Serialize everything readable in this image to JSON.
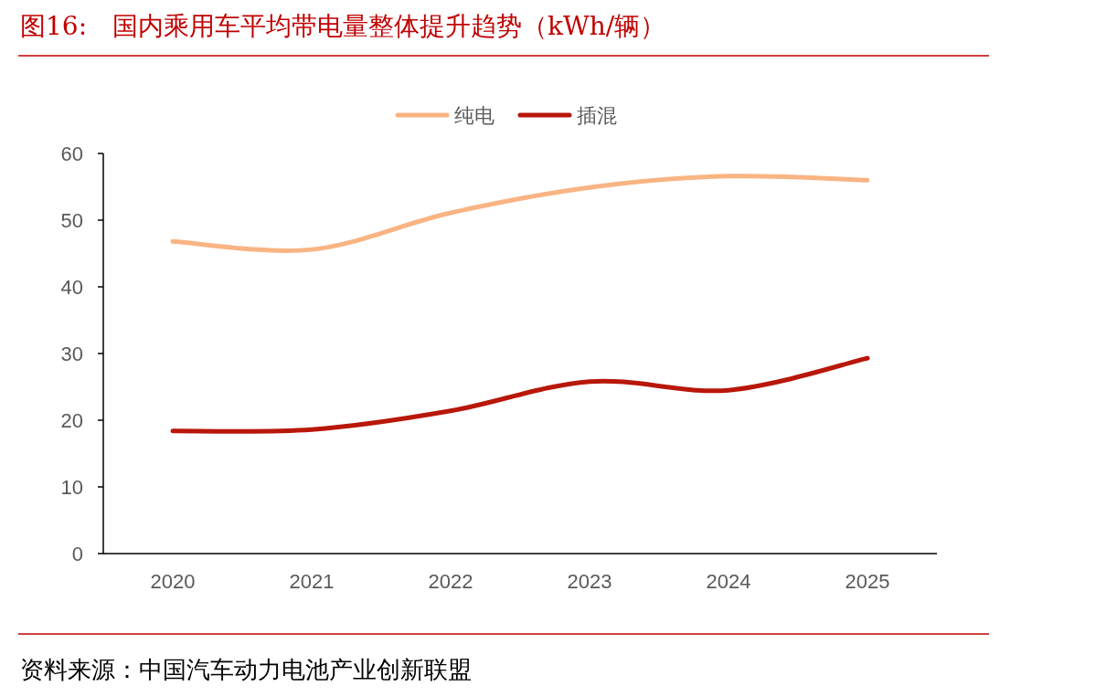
{
  "chart_data": {
    "type": "line",
    "title": "图16:　国内乘用车平均带电量整体提升趋势（kWh/辆）",
    "categories": [
      "2020",
      "2021",
      "2022",
      "2023",
      "2024",
      "2025"
    ],
    "series": [
      {
        "name": "纯电",
        "color": "#f9b483",
        "values": [
          46.8,
          45.6,
          51.1,
          54.9,
          56.6,
          56.0
        ]
      },
      {
        "name": "插混",
        "color": "#b8170a",
        "values": [
          18.4,
          18.6,
          21.4,
          25.8,
          24.5,
          29.3
        ]
      }
    ],
    "ylim": [
      0,
      60
    ],
    "yticks": [
      0,
      10,
      20,
      30,
      40,
      50,
      60
    ],
    "legend": "top",
    "grid": false,
    "marker": "none",
    "annotations": [
      "资料来源：中国汽车动力电池产业创新联盟"
    ]
  }
}
